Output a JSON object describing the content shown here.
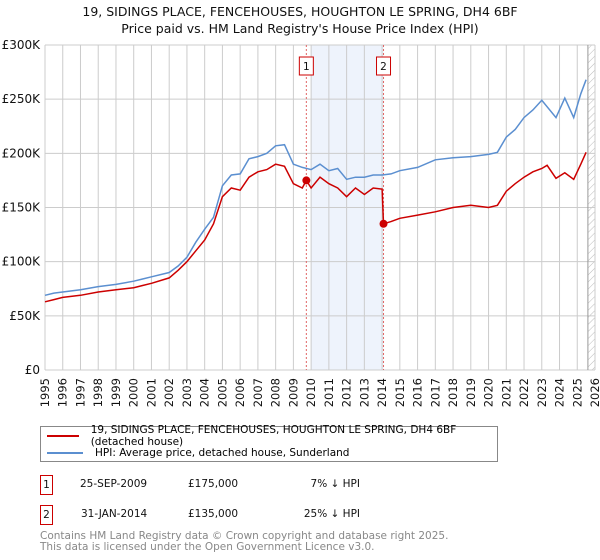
{
  "title_line1": "19, SIDINGS PLACE, FENCEHOUSES, HOUGHTON LE SPRING, DH4 6BF",
  "title_line2": "Price paid vs. HM Land Registry's House Price Index (HPI)",
  "chart_data": {
    "type": "line",
    "title": "19, SIDINGS PLACE, FENCEHOUSES, HOUGHTON LE SPRING, DH4 6BF — Price paid vs. HM Land Registry's House Price Index (HPI)",
    "xlabel": "",
    "ylabel": "",
    "xlim": [
      1995,
      2026
    ],
    "ylim": [
      0,
      300000
    ],
    "yticks": [
      0,
      50000,
      100000,
      150000,
      200000,
      250000,
      300000
    ],
    "ytick_labels": [
      "£0",
      "£50K",
      "£100K",
      "£150K",
      "£200K",
      "£250K",
      "£300K"
    ],
    "xticks": [
      1995,
      1996,
      1997,
      1998,
      1999,
      2000,
      2001,
      2002,
      2003,
      2004,
      2005,
      2006,
      2007,
      2008,
      2009,
      2010,
      2011,
      2012,
      2013,
      2014,
      2015,
      2016,
      2017,
      2018,
      2019,
      2020,
      2021,
      2022,
      2023,
      2024,
      2025,
      2026
    ],
    "grid": true,
    "shaded_range": [
      2010.0,
      2014.08
    ],
    "projection_start": 2025.6,
    "series": [
      {
        "name": "19, SIDINGS PLACE, FENCEHOUSES, HOUGHTON LE SPRING, DH4 6BF (detached house)",
        "color": "#cc0000",
        "x": [
          1995,
          1995.5,
          1996,
          1997,
          1998,
          1999,
          2000,
          2000.5,
          2001,
          2002,
          2002.5,
          2003,
          2003.5,
          2004,
          2004.5,
          2005,
          2005.5,
          2006,
          2006.5,
          2007,
          2007.5,
          2008,
          2008.5,
          2009,
          2009.5,
          2009.73,
          2010,
          2010.5,
          2011,
          2011.5,
          2012,
          2012.5,
          2013,
          2013.5,
          2014.0,
          2014.08,
          2014.5,
          2015,
          2016,
          2017,
          2018,
          2019,
          2020,
          2020.5,
          2021,
          2021.5,
          2022,
          2022.5,
          2023,
          2023.3,
          2023.8,
          2024.3,
          2024.8,
          2025.2,
          2025.5
        ],
        "y": [
          63000,
          65000,
          67000,
          69000,
          72000,
          74000,
          76000,
          78000,
          80000,
          85000,
          92000,
          100000,
          110000,
          120000,
          135000,
          160000,
          168000,
          166000,
          178000,
          183000,
          185000,
          190000,
          188000,
          172000,
          168000,
          175000,
          168000,
          178000,
          172000,
          168000,
          160000,
          168000,
          162000,
          168000,
          167000,
          135000,
          137000,
          140000,
          143000,
          146000,
          150000,
          152000,
          150000,
          152000,
          165000,
          172000,
          178000,
          183000,
          186000,
          189000,
          177000,
          182000,
          176000,
          190000,
          201000
        ]
      },
      {
        "name": "HPI: Average price, detached house, Sunderland",
        "color": "#5b8fd0",
        "x": [
          1995,
          1995.5,
          1996,
          1997,
          1998,
          1999,
          2000,
          2000.5,
          2001,
          2002,
          2002.5,
          2003,
          2003.5,
          2004,
          2004.5,
          2005,
          2005.5,
          2006,
          2006.5,
          2007,
          2007.5,
          2008,
          2008.5,
          2009,
          2009.5,
          2010,
          2010.5,
          2011,
          2011.5,
          2012,
          2012.5,
          2013,
          2013.5,
          2014,
          2014.5,
          2015,
          2016,
          2017,
          2018,
          2019,
          2020,
          2020.5,
          2021,
          2021.5,
          2022,
          2022.5,
          2023,
          2023.8,
          2024.3,
          2024.8,
          2025.2,
          2025.5
        ],
        "y": [
          69000,
          71000,
          72000,
          74000,
          77000,
          79000,
          82000,
          84000,
          86000,
          90000,
          96000,
          104000,
          118000,
          130000,
          141000,
          170000,
          180000,
          181000,
          195000,
          197000,
          200000,
          207000,
          208000,
          190000,
          187000,
          185000,
          190000,
          184000,
          186000,
          176000,
          178000,
          178000,
          180000,
          180000,
          181000,
          184000,
          187000,
          194000,
          196000,
          197000,
          199000,
          201000,
          215000,
          222000,
          233000,
          240000,
          249000,
          233000,
          251000,
          233000,
          255000,
          268000
        ]
      }
    ],
    "sales": [
      {
        "label": "1",
        "x": 2009.73,
        "y": 175000
      },
      {
        "label": "2",
        "x": 2014.08,
        "y": 135000
      }
    ]
  },
  "legend": {
    "property": "19, SIDINGS PLACE, FENCEHOUSES, HOUGHTON LE SPRING, DH4 6BF (detached house)",
    "hpi": "HPI: Average price, detached house, Sunderland"
  },
  "sales_table": [
    {
      "num": "1",
      "date": "25-SEP-2009",
      "price": "£175,000",
      "hpi": "7% ↓ HPI"
    },
    {
      "num": "2",
      "date": "31-JAN-2014",
      "price": "£135,000",
      "hpi": "25% ↓ HPI"
    }
  ],
  "footer": {
    "line1": "Contains HM Land Registry data © Crown copyright and database right 2025.",
    "line2": "This data is licensed under the Open Government Licence v3.0."
  }
}
